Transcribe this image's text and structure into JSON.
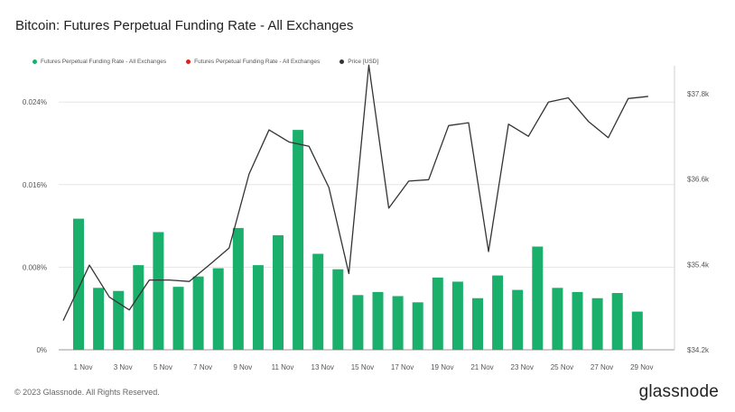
{
  "title": "Bitcoin: Futures Perpetual Funding Rate - All Exchanges",
  "legend": [
    {
      "label": "Futures Perpetual Funding Rate - All Exchanges",
      "color": "#1ab06b"
    },
    {
      "label": "Futures Perpetual Funding Rate - All Exchanges",
      "color": "#e0201b"
    },
    {
      "label": "Price [USD]",
      "color": "#333333"
    }
  ],
  "footer": "© 2023 Glassnode. All Rights Reserved.",
  "logo": "glassnode",
  "colors": {
    "bar": "#1ab06b",
    "line": "#333333",
    "grid": "#e5e5e5"
  },
  "chart_data": {
    "type": "bar",
    "title": "Bitcoin: Futures Perpetual Funding Rate - All Exchanges",
    "x_tick_labels": [
      "1 Nov",
      "3 Nov",
      "5 Nov",
      "7 Nov",
      "9 Nov",
      "11 Nov",
      "13 Nov",
      "15 Nov",
      "17 Nov",
      "19 Nov",
      "21 Nov",
      "23 Nov",
      "25 Nov",
      "27 Nov",
      "29 Nov"
    ],
    "y_left_ticks": [
      "0%",
      "0.008%",
      "0.016%",
      "0.024%"
    ],
    "y_left_values": [
      0,
      0.008,
      0.016,
      0.024
    ],
    "y_right_ticks": [
      "$34.2k",
      "$35.4k",
      "$36.6k",
      "$37.8k"
    ],
    "y_right_values": [
      34200,
      35400,
      36600,
      37800
    ],
    "ylim_left": [
      0,
      0.0262
    ],
    "ylim_right": [
      34200,
      38000
    ],
    "series": [
      {
        "name": "Futures Perpetual Funding Rate - All Exchanges",
        "type": "bar",
        "axis": "left",
        "values": [
          0.0127,
          0.006,
          0.0057,
          0.0082,
          0.0114,
          0.0061,
          0.0071,
          0.0079,
          0.0118,
          0.0082,
          0.0111,
          0.0213,
          0.0093,
          0.0078,
          0.0053,
          0.0056,
          0.0052,
          0.0046,
          0.007,
          0.0066,
          0.005,
          0.0072,
          0.0058,
          0.01,
          0.006,
          0.0056,
          0.005,
          0.0055,
          0.0037
        ]
      },
      {
        "name": "Price [USD]",
        "type": "line",
        "axis": "right",
        "values": [
          34610,
          35390,
          34940,
          34760,
          35180,
          35180,
          35160,
          35390,
          35630,
          36670,
          37290,
          37120,
          37060,
          36480,
          35270,
          38200,
          36190,
          36570,
          36590,
          37350,
          37390,
          35580,
          37370,
          37200,
          37680,
          37740,
          37410,
          37180,
          37730,
          37760
        ]
      }
    ]
  }
}
